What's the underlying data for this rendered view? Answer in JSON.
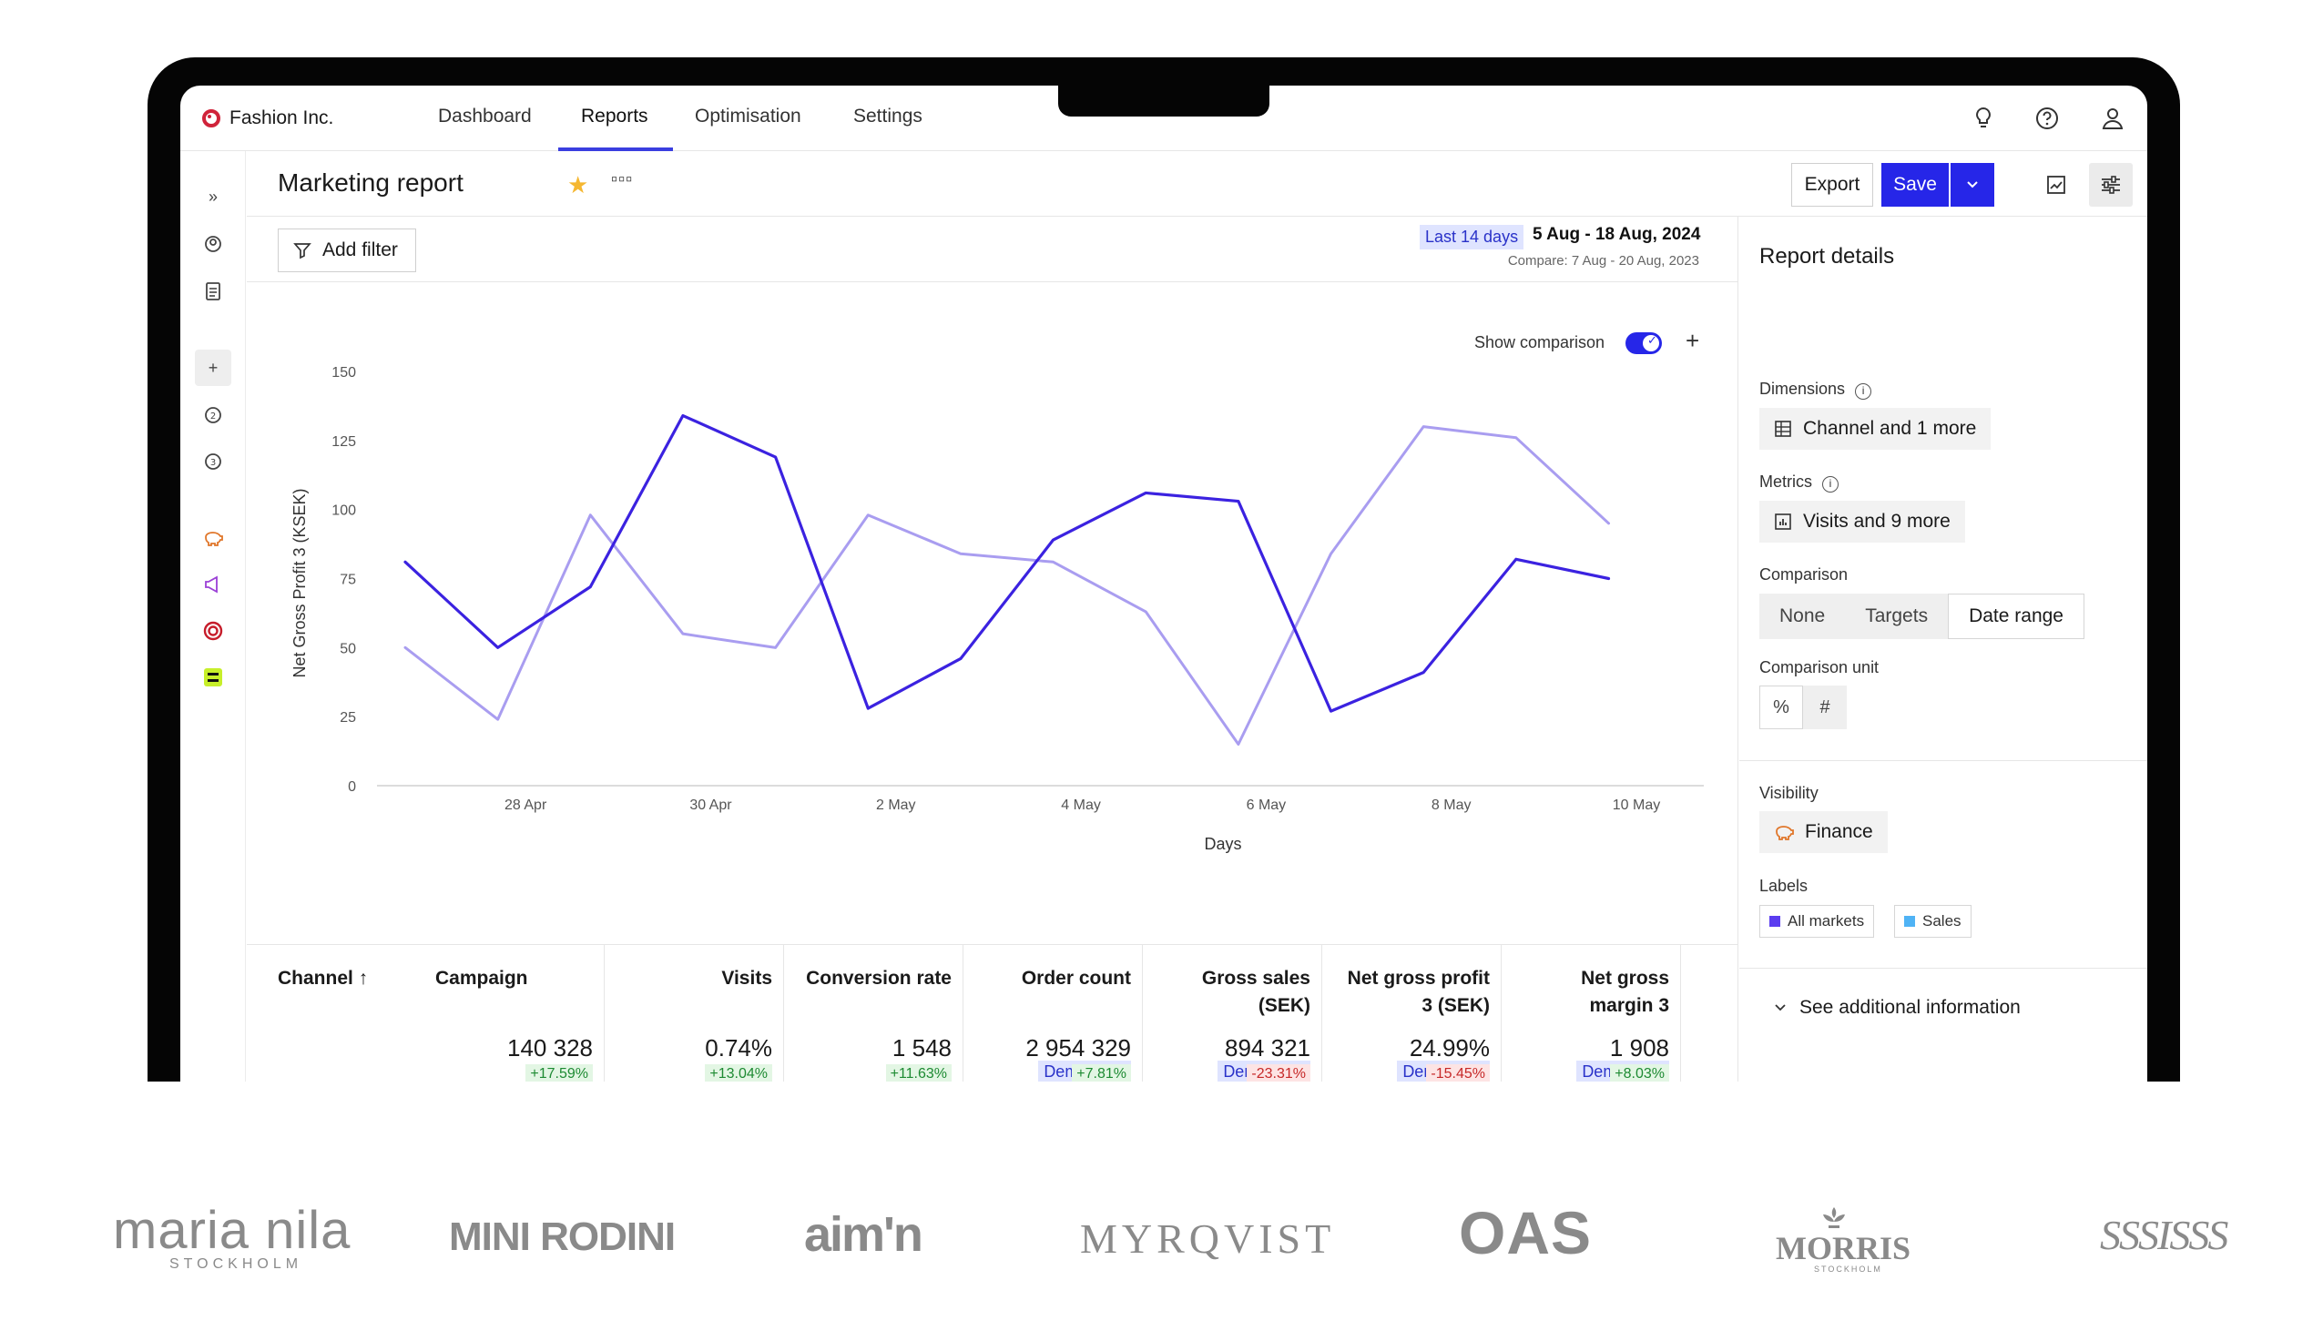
{
  "app": {
    "brand": "Fashion Inc.",
    "nav": [
      "Dashboard",
      "Reports",
      "Optimisation",
      "Settings"
    ],
    "active_nav": "Reports"
  },
  "header": {
    "title": "Marketing report",
    "export_label": "Export",
    "save_label": "Save"
  },
  "filter": {
    "add_filter_label": "Add filter",
    "date_preset": "Last 14 days",
    "date_range": "5 Aug - 18 Aug, 2024",
    "compare": "Compare: 7 Aug - 20 Aug, 2023"
  },
  "chart_controls": {
    "show_comparison_label": "Show comparison",
    "show_comparison_on": true
  },
  "chart_data": {
    "type": "line",
    "title": "",
    "xlabel": "Days",
    "ylabel": "Net Gross Profit 3 (KSEK)",
    "ylim": [
      0,
      150
    ],
    "yticks": [
      0,
      25,
      50,
      75,
      100,
      125,
      150
    ],
    "x_tick_labels": [
      "28 Apr",
      "30 Apr",
      "2 May",
      "4 May",
      "6 May",
      "8 May",
      "10 May"
    ],
    "x_tick_positions": [
      1.3,
      3.3,
      5.3,
      7.3,
      9.3,
      11.3,
      13.3
    ],
    "grid": false,
    "series": [
      {
        "color": "#3b22e0",
        "x": [
          0,
          1,
          2,
          3,
          4,
          5,
          6,
          7,
          8,
          9,
          10,
          11,
          12,
          13
        ],
        "values": [
          81,
          50,
          72,
          134,
          119,
          28,
          46,
          89,
          106,
          103,
          27,
          41,
          82,
          75
        ]
      },
      {
        "color": "#a99df0",
        "x": [
          0,
          1,
          2,
          3,
          4,
          5,
          6,
          7,
          8,
          9,
          10,
          11,
          12,
          13
        ],
        "values": [
          50,
          24,
          98,
          55,
          50,
          98,
          84,
          81,
          63,
          15,
          84,
          130,
          126,
          95
        ]
      }
    ]
  },
  "table": {
    "columns": [
      {
        "header": "Channel ↑",
        "badge": "",
        "value": "",
        "delta": "",
        "trend": ""
      },
      {
        "header": "Campaign",
        "badge": "",
        "value": "140 328",
        "delta": "+17.59%",
        "trend": "pos"
      },
      {
        "header": "Visits",
        "badge": "",
        "value": "0.74%",
        "delta": "+13.04%",
        "trend": "pos"
      },
      {
        "header": "Conversion rate",
        "badge": "",
        "value": "1 548",
        "delta": "+11.63%",
        "trend": "pos"
      },
      {
        "header": "Order count",
        "badge": "Dema MTA",
        "value": "2 954 329",
        "delta": "+7.81%",
        "trend": "pos"
      },
      {
        "header": "Gross sales (SEK)",
        "badge": "Dema MTA",
        "value": "894 321",
        "delta": "-23.31%",
        "trend": "neg"
      },
      {
        "header": "Net gross profit 3 (SEK)",
        "badge": "Dema MTA",
        "value": "24.99%",
        "delta": "-15.45%",
        "trend": "neg"
      },
      {
        "header": "Net gross margin 3",
        "badge": "Dema MTA",
        "value": "1 908",
        "delta": "+8.03%",
        "trend": "pos"
      }
    ]
  },
  "panel": {
    "title": "Report details",
    "dimensions_label": "Dimensions",
    "dimensions_value": "Channel and 1 more",
    "metrics_label": "Metrics",
    "metrics_value": "Visits and 9 more",
    "comparison_label": "Comparison",
    "comparison_options": [
      "None",
      "Targets",
      "Date range"
    ],
    "comparison_selected": "Date range",
    "comparison_unit_label": "Comparison unit",
    "visibility_label": "Visibility",
    "visibility_value": "Finance",
    "labels_label": "Labels",
    "labels": [
      {
        "name": "All markets",
        "color": "#5b3df0"
      },
      {
        "name": "Sales",
        "color": "#4fb3f5"
      }
    ],
    "see_more": "See additional information"
  },
  "logos": {
    "maria_nila": "maria nila",
    "maria_nila_sub": "STOCKHOLM",
    "mini_rodini": "MINI RODINI",
    "aim": "aim'n",
    "myrqvist": "MYRQVIST",
    "oas": "OAS",
    "morris": "MORRIS",
    "morris_sub": "STOCKHOLM",
    "last": "SSSISSS"
  },
  "colors": {
    "accent": "#2626e8",
    "brand_red": "#d0233a"
  }
}
